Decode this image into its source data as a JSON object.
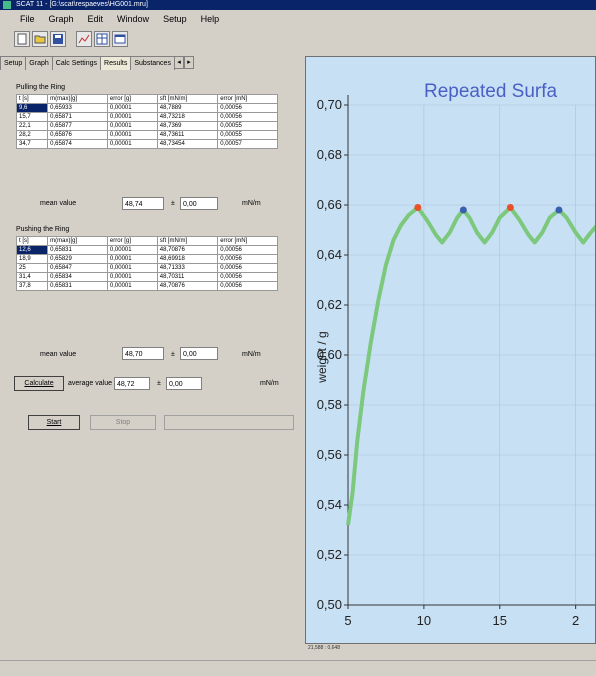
{
  "window": {
    "title": "SCAT 11 - [G:\\scat\\respaeves\\HG001.mru]"
  },
  "menu": [
    "File",
    "Graph",
    "Edit",
    "Window",
    "Setup",
    "Help"
  ],
  "tabs": [
    "Setup",
    "Graph",
    "Calc Settings",
    "Results",
    "Substances"
  ],
  "active_tab": "Results",
  "pulling": {
    "title": "Pulling the Ring",
    "headers": [
      "t [s]",
      "m(max)[g]",
      "error [g]",
      "sft [mN/m]",
      "error [mN]"
    ],
    "rows": [
      [
        "9,6",
        "0,65933",
        "0,00001",
        "48,7889",
        "0,00056"
      ],
      [
        "15,7",
        "0,65871",
        "0,00001",
        "48,73218",
        "0,00056"
      ],
      [
        "22,1",
        "0,65877",
        "0,00001",
        "48,7369",
        "0,00055"
      ],
      [
        "28,2",
        "0,65876",
        "0,00001",
        "48,73611",
        "0,00055"
      ],
      [
        "34,7",
        "0,65874",
        "0,00001",
        "48,73454",
        "0,00057"
      ]
    ],
    "mean_label": "mean value",
    "mean_value": "48,74",
    "pm": "±",
    "error_value": "0,00",
    "unit": "mN/m"
  },
  "pushing": {
    "title": "Pushing the Ring",
    "headers": [
      "t [s]",
      "m(max)[g]",
      "error [g]",
      "sft [mN/m]",
      "error [mN]"
    ],
    "rows": [
      [
        "12,6",
        "0,65831",
        "0,00001",
        "48,70876",
        "0,00056"
      ],
      [
        "18,9",
        "0,65829",
        "0,00001",
        "48,69918",
        "0,00056"
      ],
      [
        "25",
        "0,65847",
        "0,00001",
        "48,71333",
        "0,00056"
      ],
      [
        "31,4",
        "0,65834",
        "0,00001",
        "48,70311",
        "0,00056"
      ],
      [
        "37,8",
        "0,65831",
        "0,00001",
        "48,70876",
        "0,00056"
      ]
    ],
    "mean_label": "mean value",
    "mean_value": "48,70",
    "pm": "±",
    "error_value": "0,00",
    "unit": "mN/m"
  },
  "calc": {
    "button": "Calculate",
    "avg_label": "average value",
    "avg_value": "48,72",
    "pm": "±",
    "error_value": "0,00",
    "unit": "mN/m"
  },
  "buttons": {
    "start": "Start",
    "stop": "Stop"
  },
  "coord_readout": "21,588 : 0,648",
  "colors": {
    "chart_bg": "#c8e0f4",
    "curve": "#7cc87c",
    "max_marker": "#e8502a",
    "min_marker": "#3a5fb0",
    "title": "#4a5fc4"
  },
  "chart_data": {
    "type": "line",
    "title": "Repeated Surfa",
    "xlabel": "",
    "ylabel": "weight / g",
    "xlim": [
      5,
      22
    ],
    "ylim": [
      0.5,
      0.7
    ],
    "x_ticks": [
      "5",
      "10",
      "15",
      "2"
    ],
    "y_ticks": [
      "0,50",
      "0,52",
      "0,54",
      "0,56",
      "0,58",
      "0,60",
      "0,62",
      "0,64",
      "0,66",
      "0,68",
      "0,70"
    ],
    "grid": true,
    "series": [
      {
        "x": [
          5.0,
          5.3,
          5.6,
          6.0,
          6.5,
          7.0,
          7.5,
          8.0,
          8.5,
          9.0,
          9.6,
          10.2,
          10.8,
          11.2,
          11.7,
          12.2,
          12.6,
          13.0,
          13.5,
          14.0,
          14.5,
          15.0,
          15.7,
          16.3,
          16.9,
          17.3,
          17.8,
          18.3,
          18.9,
          19.4,
          20.0,
          20.5,
          21.0,
          22.0
        ],
        "y": [
          0.532,
          0.545,
          0.565,
          0.585,
          0.605,
          0.622,
          0.636,
          0.646,
          0.652,
          0.656,
          0.659,
          0.654,
          0.648,
          0.645,
          0.649,
          0.655,
          0.658,
          0.655,
          0.649,
          0.645,
          0.649,
          0.655,
          0.659,
          0.654,
          0.648,
          0.645,
          0.649,
          0.655,
          0.658,
          0.655,
          0.649,
          0.645,
          0.649,
          0.656
        ]
      }
    ],
    "markers": [
      {
        "x": 9.6,
        "y": 0.659,
        "kind": "max"
      },
      {
        "x": 12.6,
        "y": 0.658,
        "kind": "min"
      },
      {
        "x": 15.7,
        "y": 0.659,
        "kind": "max"
      },
      {
        "x": 18.9,
        "y": 0.658,
        "kind": "min"
      }
    ]
  }
}
